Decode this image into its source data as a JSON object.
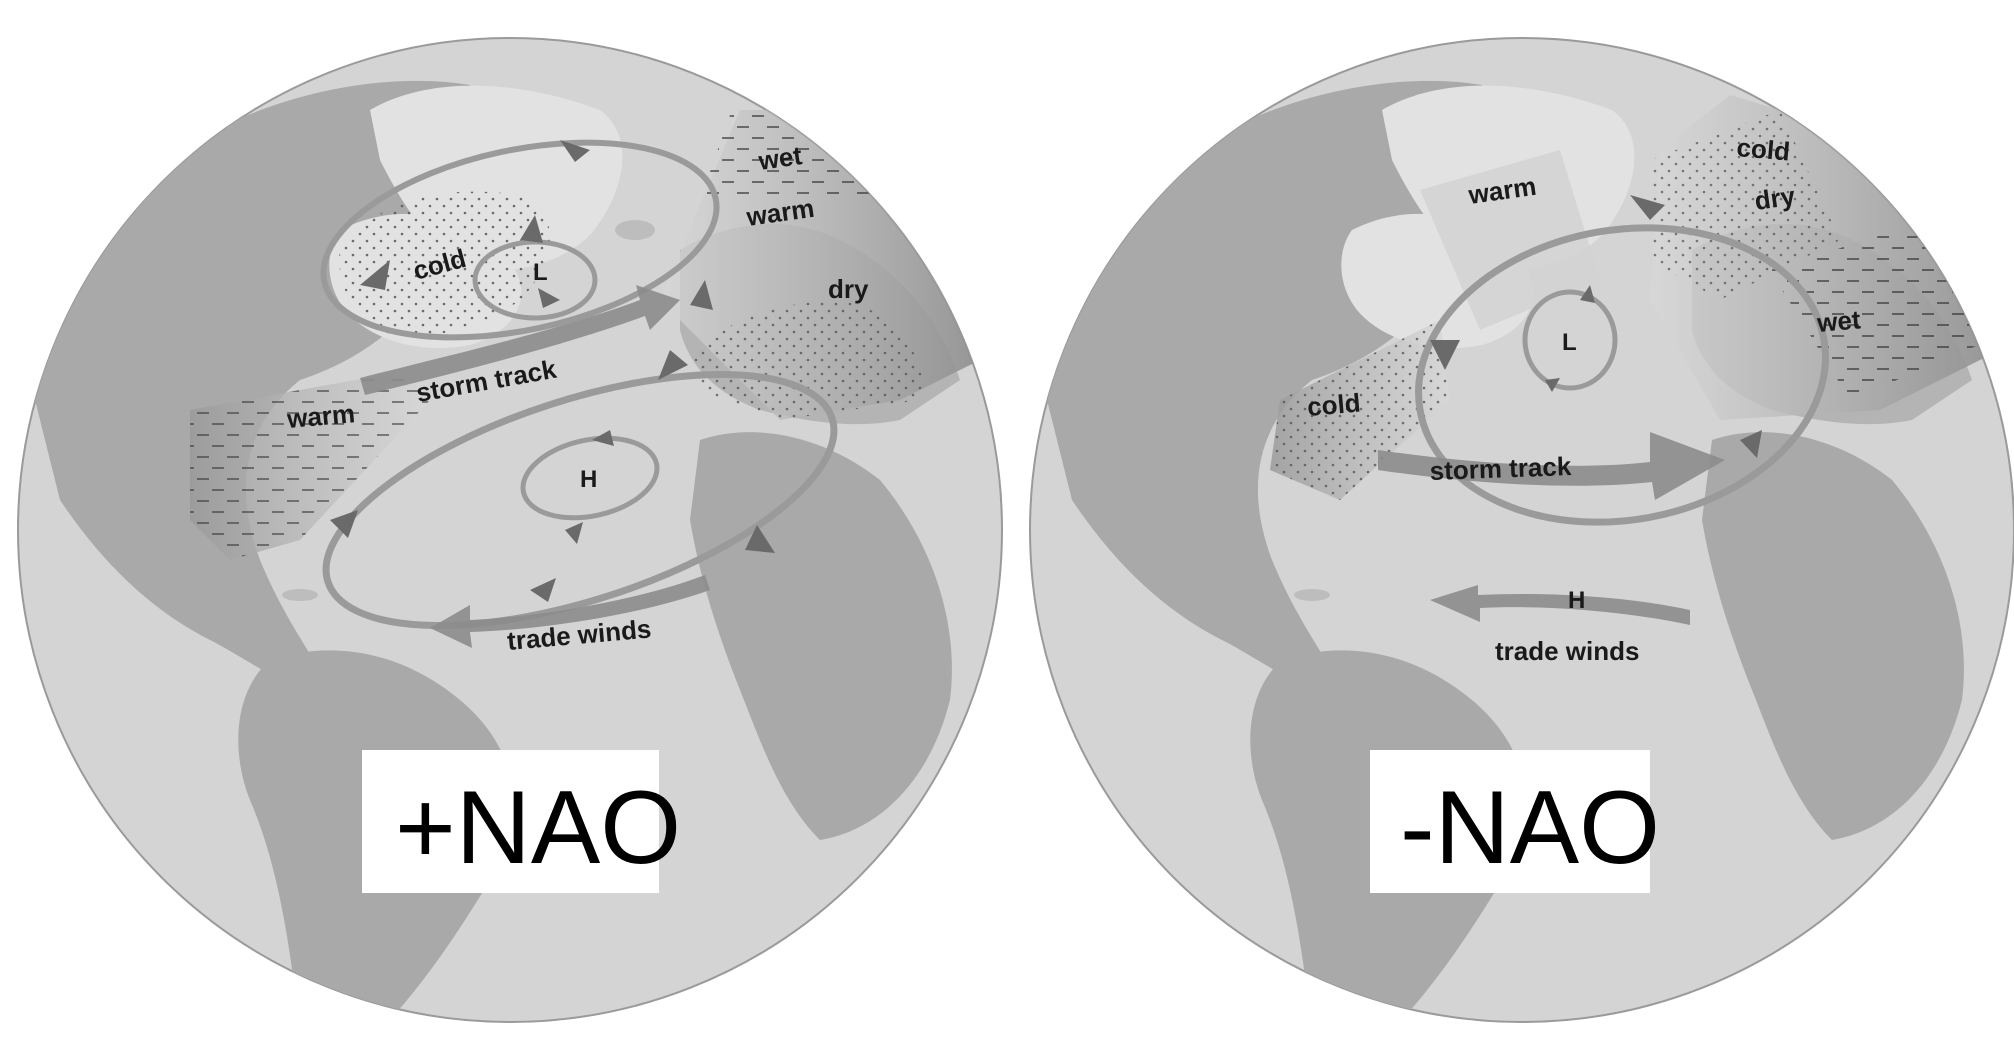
{
  "panels": [
    {
      "id": "positive",
      "title": "+NAO",
      "labels": {
        "wet": "wet",
        "warm_europe": "warm",
        "dry": "dry",
        "cold": "cold",
        "low": "L",
        "storm_track": "storm track",
        "warm_us": "warm",
        "high": "H",
        "trade_winds": "trade winds"
      }
    },
    {
      "id": "negative",
      "title": "-NAO",
      "labels": {
        "cold_europe": "cold",
        "dry": "dry",
        "warm_greenland": "warm",
        "wet": "wet",
        "low": "L",
        "cold_us": "cold",
        "storm_track": "storm track",
        "high": "H",
        "trade_winds": "trade winds"
      }
    }
  ],
  "colors": {
    "ocean": "#d4d4d4",
    "land_dark": "#a8a8a8",
    "land_light": "#e4e4e4",
    "arrow": "#8c8c8c",
    "arrow_head": "#6a6a6a",
    "band": "#b8b8b8"
  }
}
